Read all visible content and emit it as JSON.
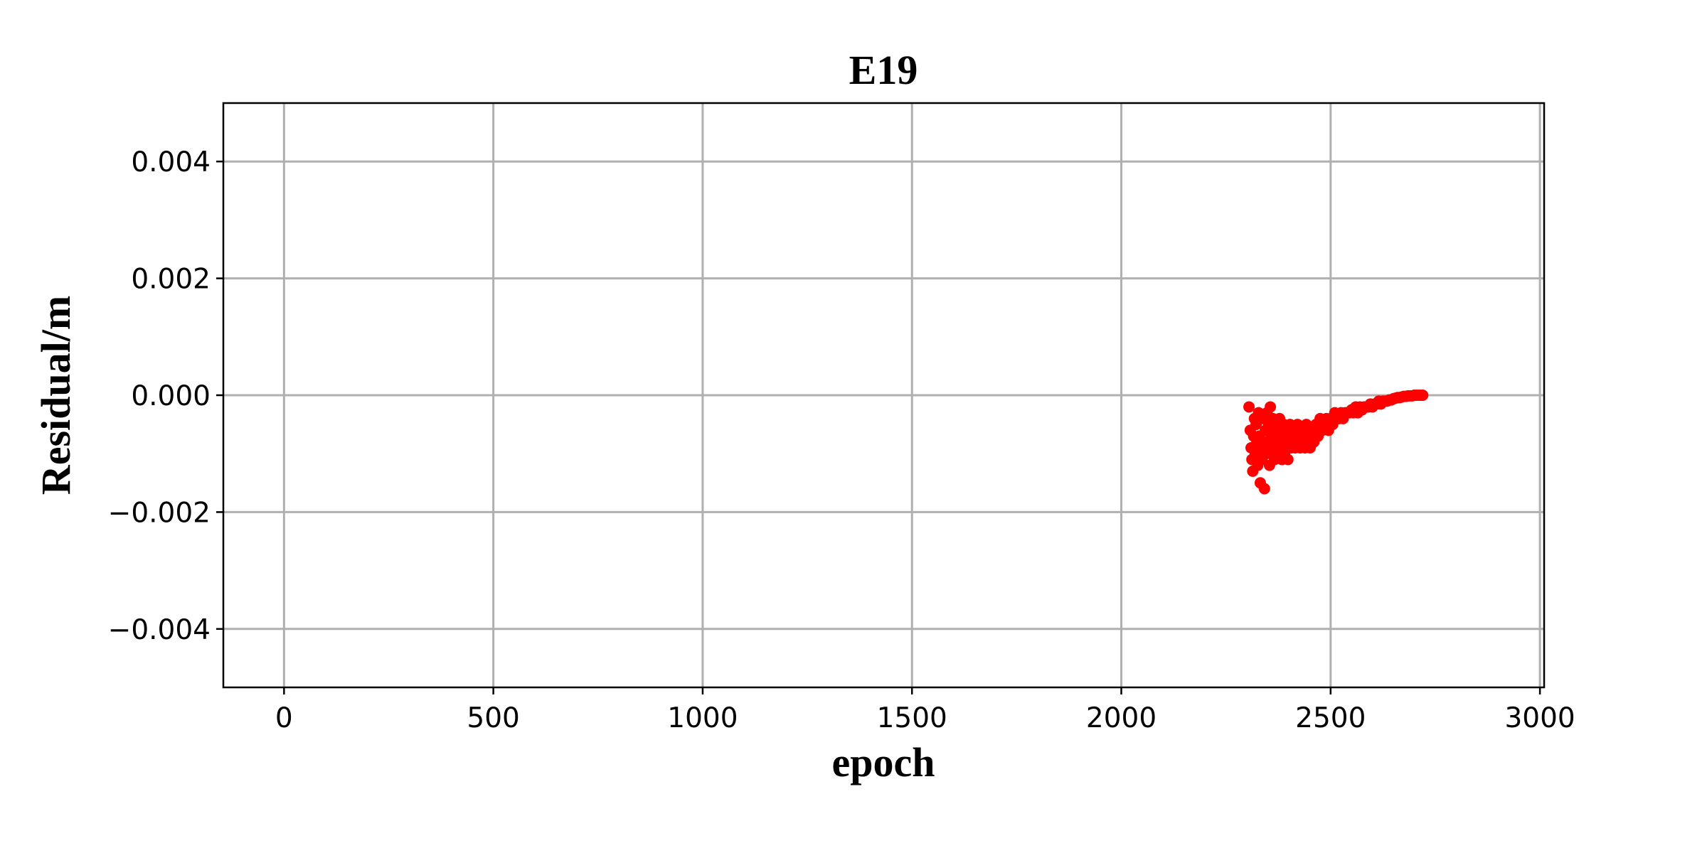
{
  "chart_data": {
    "type": "scatter",
    "title": "E19",
    "xlabel": "epoch",
    "ylabel": "Residual/m",
    "xlim": [
      -145,
      3010
    ],
    "ylim": [
      -0.005,
      0.005
    ],
    "xticks": [
      0,
      500,
      1000,
      1500,
      2000,
      2500,
      3000
    ],
    "xtick_labels": [
      "0",
      "500",
      "1000",
      "1500",
      "2000",
      "2500",
      "3000"
    ],
    "yticks": [
      0.004,
      0.002,
      0.0,
      -0.002,
      -0.004
    ],
    "ytick_labels": [
      "0.004",
      "0.002",
      "0.000",
      "−0.002",
      "−0.004"
    ],
    "grid": true,
    "legend": "none",
    "marker_color": "#ff0000",
    "series": [
      {
        "points": [
          [
            2305,
            -0.0002
          ],
          [
            2308,
            -0.0006
          ],
          [
            2310,
            -0.0009
          ],
          [
            2312,
            -0.0011
          ],
          [
            2314,
            -0.0013
          ],
          [
            2316,
            -0.0007
          ],
          [
            2318,
            -0.0004
          ],
          [
            2320,
            -0.001
          ],
          [
            2322,
            -0.0005
          ],
          [
            2324,
            -0.0008
          ],
          [
            2326,
            -0.0012
          ],
          [
            2328,
            -0.0003
          ],
          [
            2330,
            -0.0007
          ],
          [
            2332,
            -0.0015
          ],
          [
            2334,
            -0.0009
          ],
          [
            2336,
            -0.0011
          ],
          [
            2338,
            -0.0004
          ],
          [
            2340,
            -0.0008
          ],
          [
            2342,
            -0.0016
          ],
          [
            2344,
            -0.0006
          ],
          [
            2346,
            -0.001
          ],
          [
            2348,
            -0.0003
          ],
          [
            2350,
            -0.0009
          ],
          [
            2352,
            -0.0005
          ],
          [
            2354,
            -0.0012
          ],
          [
            2356,
            -0.0002
          ],
          [
            2358,
            -0.0007
          ],
          [
            2360,
            -0.001
          ],
          [
            2362,
            -0.0004
          ],
          [
            2364,
            -0.0008
          ],
          [
            2366,
            -0.0011
          ],
          [
            2368,
            -0.0006
          ],
          [
            2370,
            -0.0009
          ],
          [
            2372,
            -0.0005
          ],
          [
            2374,
            -0.001
          ],
          [
            2376,
            -0.0007
          ],
          [
            2378,
            -0.0004
          ],
          [
            2380,
            -0.0009
          ],
          [
            2382,
            -0.0006
          ],
          [
            2384,
            -0.0011
          ],
          [
            2386,
            -0.0008
          ],
          [
            2388,
            -0.0005
          ],
          [
            2390,
            -0.001
          ],
          [
            2392,
            -0.0007
          ],
          [
            2394,
            -0.0009
          ],
          [
            2396,
            -0.0006
          ],
          [
            2398,
            -0.0011
          ],
          [
            2400,
            -0.0008
          ],
          [
            2403,
            -0.0005
          ],
          [
            2406,
            -0.0009
          ],
          [
            2409,
            -0.0007
          ],
          [
            2412,
            -0.0006
          ],
          [
            2415,
            -0.0009
          ],
          [
            2418,
            -0.0008
          ],
          [
            2421,
            -0.0005
          ],
          [
            2424,
            -0.0007
          ],
          [
            2427,
            -0.0009
          ],
          [
            2430,
            -0.0006
          ],
          [
            2433,
            -0.0008
          ],
          [
            2436,
            -0.0007
          ],
          [
            2439,
            -0.0009
          ],
          [
            2442,
            -0.0005
          ],
          [
            2445,
            -0.0008
          ],
          [
            2448,
            -0.0006
          ],
          [
            2451,
            -0.0009
          ],
          [
            2454,
            -0.0007
          ],
          [
            2457,
            -0.0006
          ],
          [
            2460,
            -0.0008
          ],
          [
            2465,
            -0.0005
          ],
          [
            2470,
            -0.0007
          ],
          [
            2475,
            -0.0004
          ],
          [
            2480,
            -0.0006
          ],
          [
            2485,
            -0.0005
          ],
          [
            2490,
            -0.0004
          ],
          [
            2495,
            -0.0006
          ],
          [
            2500,
            -0.0004
          ],
          [
            2505,
            -0.0005
          ],
          [
            2510,
            -0.0003
          ],
          [
            2515,
            -0.0004
          ],
          [
            2520,
            -0.0004
          ],
          [
            2525,
            -0.0003
          ],
          [
            2530,
            -0.0004
          ],
          [
            2535,
            -0.0003
          ],
          [
            2540,
            -0.0003
          ],
          [
            2545,
            -0.0003
          ],
          [
            2550,
            -0.00025
          ],
          [
            2555,
            -0.0003
          ],
          [
            2560,
            -0.0002
          ],
          [
            2565,
            -0.0003
          ],
          [
            2570,
            -0.0002
          ],
          [
            2575,
            -0.00025
          ],
          [
            2580,
            -0.0002
          ],
          [
            2585,
            -0.0002
          ],
          [
            2590,
            -0.0002
          ],
          [
            2595,
            -0.00015
          ],
          [
            2600,
            -0.0002
          ],
          [
            2605,
            -0.00015
          ],
          [
            2610,
            -0.00015
          ],
          [
            2615,
            -0.0001
          ],
          [
            2620,
            -0.00015
          ],
          [
            2625,
            -0.0001
          ],
          [
            2630,
            -0.0001
          ],
          [
            2635,
            -0.0001
          ],
          [
            2640,
            -8e-05
          ],
          [
            2645,
            -8e-05
          ],
          [
            2650,
            -6e-05
          ],
          [
            2655,
            -5e-05
          ],
          [
            2660,
            -4e-05
          ],
          [
            2665,
            -4e-05
          ],
          [
            2670,
            -3e-05
          ],
          [
            2675,
            -2e-05
          ],
          [
            2680,
            -2e-05
          ],
          [
            2685,
            -1e-05
          ],
          [
            2690,
            -1e-05
          ],
          [
            2695,
            -1e-05
          ],
          [
            2700,
            0.0
          ],
          [
            2705,
            0.0
          ],
          [
            2710,
            0.0
          ],
          [
            2715,
            0.0
          ],
          [
            2720,
            0.0
          ]
        ]
      }
    ]
  }
}
